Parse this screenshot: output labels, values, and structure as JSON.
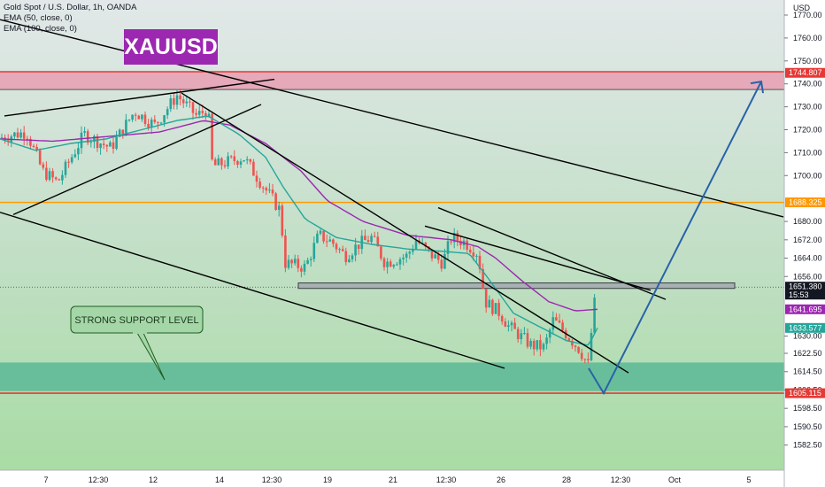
{
  "legend": {
    "line1": "Gold Spot / U.S. Dollar, 1h, OANDA",
    "line2": "EMA (50, close, 0)",
    "line3": "EMA (100, close, 0)"
  },
  "symbol_label": "XAUUSD",
  "callout_text": "STRONG SUPPORT LEVEL",
  "currency_label": "USD",
  "colors": {
    "bull": "#26a69a",
    "bear": "#ef5350",
    "ema50": "#26a69a",
    "ema100": "#9c27b0",
    "resistance_zone": "#e89ab0",
    "support_zone": "#5ab995",
    "orange_line": "#ff9800",
    "red_line": "#e53935",
    "projection": "#2962a8"
  },
  "chart_data": {
    "type": "candlestick",
    "instrument": "Gold Spot / U.S. Dollar",
    "timeframe": "1h",
    "source": "OANDA",
    "ylim": [
      1577,
      1775
    ],
    "y_ticks": [
      1582.5,
      1590.5,
      1598.5,
      1606.5,
      1614.5,
      1622.5,
      1630.0,
      1633.577,
      1641.695,
      1651.38,
      1656.0,
      1664.0,
      1672.0,
      1680.0,
      1688.325,
      1700.0,
      1710.0,
      1720.0,
      1730.0,
      1740.0,
      1744.807,
      1750.0,
      1760.0,
      1770.0
    ],
    "x_ticks": [
      "7",
      "12:30",
      "12",
      "14",
      "12:30",
      "19",
      "21",
      "12:30",
      "26",
      "28",
      "12:30",
      "Oct",
      "5"
    ],
    "price_badges": [
      {
        "label": "1744.807",
        "value": 1744.807,
        "color": "#e53935"
      },
      {
        "label": "1688.325",
        "value": 1688.325,
        "color": "#ff9800"
      },
      {
        "label": "1651.380",
        "sublabel": "15:53",
        "value": 1651.38,
        "color": "#131722"
      },
      {
        "label": "1641.695",
        "value": 1641.695,
        "color": "#9c27b0"
      },
      {
        "label": "1633.577",
        "value": 1633.577,
        "color": "#26a69a"
      },
      {
        "label": "1605.115",
        "value": 1605.115,
        "color": "#e53935"
      }
    ],
    "zones": [
      {
        "name": "resistance",
        "from": 1737.5,
        "to": 1745.3
      },
      {
        "name": "support",
        "from": 1606.0,
        "to": 1618.5
      }
    ],
    "horizontal_levels": [
      {
        "name": "orange",
        "value": 1688.325
      },
      {
        "name": "red",
        "value": 1605.115
      },
      {
        "name": "gray-rect",
        "from": 1651.0,
        "to": 1653.0
      }
    ],
    "close_path": [
      [
        0,
        1716.5
      ],
      [
        30,
        1719
      ],
      [
        48,
        1702
      ],
      [
        65,
        1697
      ],
      [
        95,
        1718
      ],
      [
        125,
        1712
      ],
      [
        152,
        1728
      ],
      [
        175,
        1722
      ],
      [
        200,
        1735
      ],
      [
        222,
        1726
      ],
      [
        235,
        1729
      ],
      [
        240,
        1704
      ],
      [
        275,
        1708
      ],
      [
        300,
        1694
      ],
      [
        318,
        1684
      ],
      [
        320,
        1662
      ],
      [
        345,
        1660
      ],
      [
        360,
        1674
      ],
      [
        375,
        1671
      ],
      [
        390,
        1665
      ],
      [
        405,
        1670
      ],
      [
        420,
        1673
      ],
      [
        435,
        1662
      ],
      [
        460,
        1665
      ],
      [
        470,
        1672
      ],
      [
        485,
        1666
      ],
      [
        500,
        1662
      ],
      [
        510,
        1673
      ],
      [
        525,
        1671
      ],
      [
        540,
        1666
      ],
      [
        548,
        1645
      ],
      [
        565,
        1640
      ],
      [
        575,
        1634
      ],
      [
        582,
        1632
      ],
      [
        600,
        1626
      ],
      [
        615,
        1625
      ],
      [
        625,
        1637
      ],
      [
        635,
        1633
      ],
      [
        655,
        1624
      ],
      [
        665,
        1617
      ],
      [
        670,
        1641
      ],
      [
        675,
        1651.4
      ]
    ],
    "ema50_path": [
      [
        0,
        1716
      ],
      [
        40,
        1711
      ],
      [
        80,
        1714
      ],
      [
        120,
        1716
      ],
      [
        160,
        1720
      ],
      [
        200,
        1724
      ],
      [
        235,
        1726
      ],
      [
        270,
        1718
      ],
      [
        300,
        1708
      ],
      [
        320,
        1695
      ],
      [
        345,
        1681
      ],
      [
        380,
        1673
      ],
      [
        420,
        1670
      ],
      [
        460,
        1668
      ],
      [
        500,
        1667
      ],
      [
        530,
        1666
      ],
      [
        550,
        1656
      ],
      [
        580,
        1640
      ],
      [
        610,
        1634
      ],
      [
        640,
        1628
      ],
      [
        665,
        1626
      ],
      [
        675,
        1633.6
      ]
    ],
    "ema100_path": [
      [
        0,
        1716
      ],
      [
        60,
        1715
      ],
      [
        120,
        1717
      ],
      [
        180,
        1719
      ],
      [
        230,
        1724
      ],
      [
        260,
        1722
      ],
      [
        300,
        1714
      ],
      [
        340,
        1702
      ],
      [
        370,
        1689
      ],
      [
        410,
        1680
      ],
      [
        460,
        1674
      ],
      [
        510,
        1672
      ],
      [
        540,
        1669
      ],
      [
        560,
        1664
      ],
      [
        590,
        1654
      ],
      [
        620,
        1645
      ],
      [
        650,
        1641
      ],
      [
        675,
        1641.7
      ]
    ],
    "trendlines": [
      {
        "points": [
          [
            0,
            1768
          ],
          [
            885,
            1682
          ]
        ]
      },
      {
        "points": [
          [
            0,
            1684
          ],
          [
            570,
            1616
          ]
        ]
      },
      {
        "points": [
          [
            5,
            1726
          ],
          [
            310,
            1742
          ]
        ]
      },
      {
        "points": [
          [
            15,
            1683
          ],
          [
            295,
            1731
          ]
        ]
      },
      {
        "points": [
          [
            205,
            1736
          ],
          [
            710,
            1614
          ]
        ]
      },
      {
        "points": [
          [
            495,
            1686
          ],
          [
            752,
            1646
          ]
        ]
      },
      {
        "points": [
          [
            480,
            1678
          ],
          [
            735,
            1650
          ]
        ]
      }
    ],
    "projection": {
      "points": [
        [
          665,
          1616
        ],
        [
          682,
          1605.1
        ],
        [
          860,
          1741
        ]
      ]
    }
  }
}
